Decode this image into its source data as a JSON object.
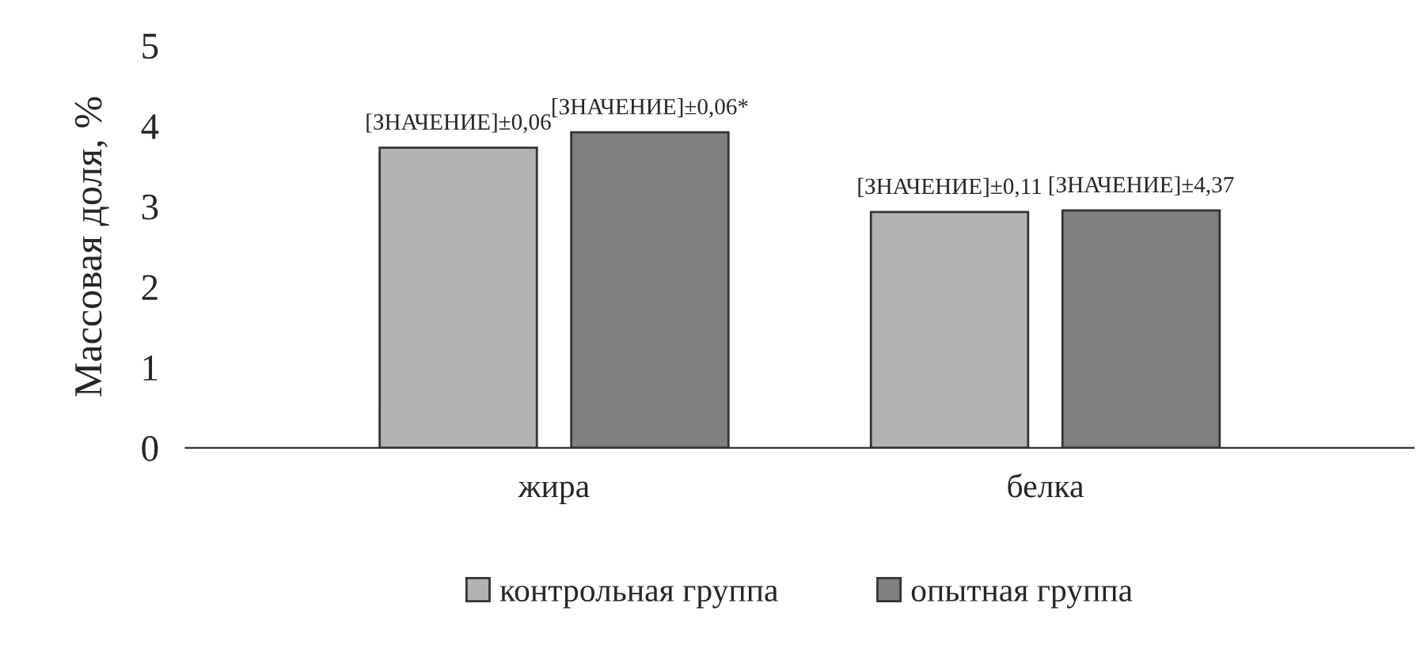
{
  "chart_data": {
    "type": "bar",
    "ylabel": "Массовая доля, %",
    "categories": [
      "жира",
      "белка"
    ],
    "series": [
      {
        "name": "контрольная группа",
        "color": "#b2b2b2",
        "values": [
          3.73,
          2.93
        ]
      },
      {
        "name": "опытная группа",
        "color": "#808080",
        "values": [
          3.92,
          2.95
        ]
      }
    ],
    "annotations": [
      "[ЗНАЧЕНИЕ]±0,06",
      "[ЗНАЧЕНИЕ]±0,11",
      "[ЗНАЧЕНИЕ]±0,06*",
      "[ЗНАЧЕНИЕ]±4,37"
    ],
    "ylim": [
      0,
      5
    ],
    "yticks": [
      0,
      1,
      2,
      3,
      4,
      5
    ],
    "grid": false,
    "legend": "bottom"
  }
}
